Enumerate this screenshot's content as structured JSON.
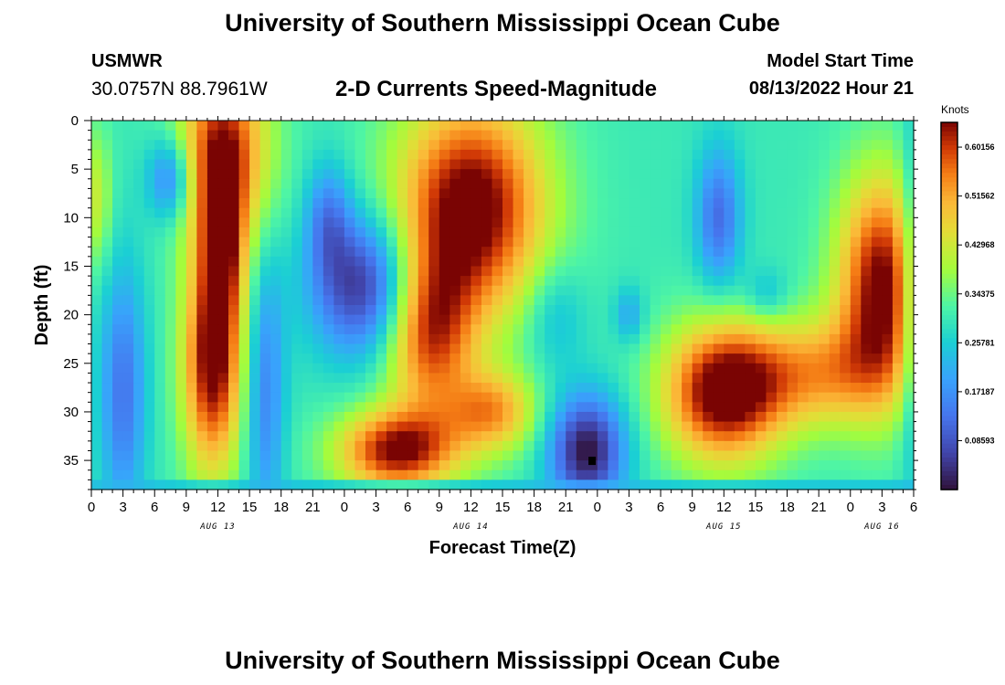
{
  "header": {
    "title": "University of Southern Mississippi Ocean Cube",
    "station": "USMWR",
    "coordinates": "30.0757N  88.7961W",
    "subtitle": "2-D Currents Speed-Magnitude",
    "model_start_label": "Model Start Time",
    "model_start_value": "08/13/2022 Hour 21"
  },
  "footer": {
    "title": "University of Southern Mississippi Ocean Cube"
  },
  "colors": {
    "low": "#30123b",
    "mid": "#4ef5a5",
    "high": "#7a0403",
    "marker": "#000000"
  },
  "chart_data": {
    "type": "heatmap",
    "title": "2-D Currents Speed-Magnitude",
    "xlabel": "Forecast Time(Z)",
    "ylabel": "Depth (ft)",
    "colorbar_label": "Knots",
    "x_unit": "hours from Aug 13 00Z",
    "xlim": [
      0,
      78
    ],
    "ylim": [
      38,
      0
    ],
    "x_tick_values": [
      0,
      3,
      6,
      9,
      12,
      15,
      18,
      21,
      24,
      27,
      30,
      33,
      36,
      39,
      42,
      45,
      48,
      51,
      54,
      57,
      60,
      63,
      66,
      69,
      72,
      75,
      78
    ],
    "x_tick_labels": [
      "0",
      "3",
      "6",
      "9",
      "12",
      "15",
      "18",
      "21",
      "0",
      "3",
      "6",
      "9",
      "12",
      "15",
      "18",
      "21",
      "0",
      "3",
      "6",
      "9",
      "12",
      "15",
      "18",
      "21",
      "0",
      "3",
      "6"
    ],
    "date_labels": [
      {
        "x": 12,
        "label": "AUG 13"
      },
      {
        "x": 36,
        "label": "AUG 14"
      },
      {
        "x": 60,
        "label": "AUG 15"
      },
      {
        "x": 75,
        "label": "AUG 16"
      }
    ],
    "y_tick_values": [
      0,
      5,
      10,
      15,
      20,
      25,
      30,
      35
    ],
    "y_tick_labels": [
      "0",
      "5",
      "10",
      "15",
      "20",
      "25",
      "30",
      "35"
    ],
    "colorbar": {
      "min": 0,
      "max": 0.645,
      "tick_values": [
        0.08593,
        0.17187,
        0.25781,
        0.34375,
        0.42968,
        0.51562,
        0.60156
      ],
      "tick_labels": [
        "0.08593",
        "0.17187",
        "0.25781",
        "0.34375",
        "0.42968",
        "0.51562",
        "0.60156"
      ]
    },
    "marker": {
      "x": 47.5,
      "y": 35
    },
    "value_range": [
      0.0,
      0.645
    ],
    "features": [
      {
        "x": 12.5,
        "y": 3,
        "sx": 3,
        "sy": 7,
        "amp": 0.32
      },
      {
        "x": 11.5,
        "y": 25,
        "sx": 2.0,
        "sy": 8,
        "amp": 0.36
      },
      {
        "x": 12.5,
        "y": 13,
        "sx": 1.5,
        "sy": 6,
        "amp": 0.22
      },
      {
        "x": 7.5,
        "y": 6,
        "sx": 1.5,
        "sy": 3,
        "amp": -0.18
      },
      {
        "x": 3,
        "y": 28,
        "sx": 1.5,
        "sy": 9,
        "amp": -0.17
      },
      {
        "x": 0.5,
        "y": 8,
        "sx": 1.0,
        "sy": 5,
        "amp": 0.12
      },
      {
        "x": 16.5,
        "y": 28,
        "sx": 1.3,
        "sy": 10,
        "amp": -0.15
      },
      {
        "x": 26,
        "y": 17,
        "sx": 3.5,
        "sy": 5,
        "amp": -0.28
      },
      {
        "x": 22.5,
        "y": 10,
        "sx": 1.5,
        "sy": 4,
        "amp": -0.14
      },
      {
        "x": 36,
        "y": 9,
        "sx": 5,
        "sy": 8,
        "amp": 0.38
      },
      {
        "x": 32,
        "y": 22,
        "sx": 3,
        "sy": 6,
        "amp": 0.28
      },
      {
        "x": 29,
        "y": 34,
        "sx": 4,
        "sy": 3,
        "amp": 0.34
      },
      {
        "x": 38,
        "y": 30,
        "sx": 3,
        "sy": 3,
        "amp": 0.22
      },
      {
        "x": 47,
        "y": 34,
        "sx": 2.5,
        "sy": 4,
        "amp": -0.3
      },
      {
        "x": 44,
        "y": 20,
        "sx": 2,
        "sy": 4,
        "amp": -0.08
      },
      {
        "x": 51,
        "y": 20,
        "sx": 1,
        "sy": 2,
        "amp": -0.1
      },
      {
        "x": 60,
        "y": 28,
        "sx": 4,
        "sy": 5,
        "amp": 0.38
      },
      {
        "x": 69,
        "y": 26,
        "sx": 5,
        "sy": 4,
        "amp": 0.2
      },
      {
        "x": 75,
        "y": 17,
        "sx": 3,
        "sy": 8,
        "amp": 0.36
      },
      {
        "x": 59.5,
        "y": 10,
        "sx": 1.5,
        "sy": 5,
        "amp": -0.18
      },
      {
        "x": 64,
        "y": 18,
        "sx": 1.5,
        "sy": 2,
        "amp": -0.08
      },
      {
        "x": 78,
        "y": 18,
        "sx": 1,
        "sy": 12,
        "amp": -0.15
      }
    ]
  }
}
